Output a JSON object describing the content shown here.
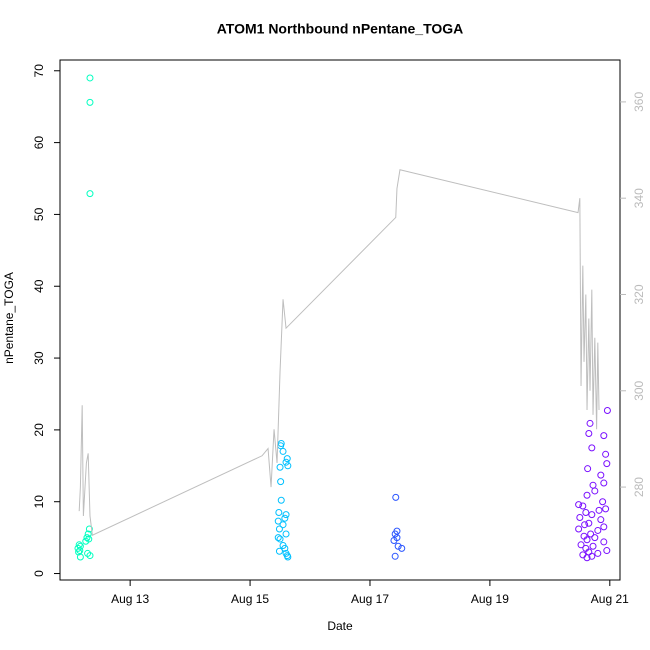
{
  "chart_data": {
    "type": "scatter",
    "title": "ATOM1 Northbound nPentane_TOGA",
    "xlabel": "Date",
    "ylabel": "nPentane_TOGA",
    "xlim": [
      11.83,
      21.17
    ],
    "xticks": [
      {
        "value": 13,
        "label": "Aug 13"
      },
      {
        "value": 15,
        "label": "Aug 15"
      },
      {
        "value": 17,
        "label": "Aug 17"
      },
      {
        "value": 19,
        "label": "Aug 19"
      },
      {
        "value": 21,
        "label": "Aug 21"
      }
    ],
    "ylim": [
      -0.9,
      71.5
    ],
    "yticks": [
      0,
      10,
      20,
      30,
      40,
      50,
      60,
      70
    ],
    "y2lim": [
      260.7,
      368.7
    ],
    "y2ticks": [
      280,
      300,
      320,
      340,
      360
    ],
    "series": [
      {
        "color": "#00ffc0",
        "x": [
          12.33,
          12.33,
          12.33,
          12.32,
          12.3,
          12.28,
          12.31,
          12.26,
          12.15,
          12.17,
          12.13,
          12.16,
          12.14,
          12.29,
          12.33,
          12.17
        ],
        "values": [
          69,
          65.6,
          52.9,
          6.2,
          5.5,
          5,
          4.8,
          4.5,
          4,
          3.8,
          3.5,
          3.2,
          3,
          2.8,
          2.5,
          2.3
        ]
      },
      {
        "color": "#00c0ff",
        "x": [
          15.52,
          15.51,
          15.55,
          15.62,
          15.6,
          15.63,
          15.5,
          15.51,
          15.52,
          15.48,
          15.6,
          15.58,
          15.47,
          15.55,
          15.49,
          15.6,
          15.47,
          15.5,
          15.55,
          15.58,
          15.49,
          15.6,
          15.62,
          15.63
        ],
        "values": [
          18.1,
          17.8,
          17,
          16,
          15.5,
          15,
          14.8,
          12.8,
          10.2,
          8.5,
          8.2,
          7.7,
          7.3,
          6.8,
          6.2,
          5.5,
          5,
          4.8,
          3.9,
          3.5,
          3.1,
          2.8,
          2.5,
          2.3
        ]
      },
      {
        "color": "#2a55ff",
        "x": [
          17.43,
          17.45,
          17.42,
          17.45,
          17.4,
          17.47,
          17.53,
          17.42
        ],
        "values": [
          10.6,
          5.9,
          5.5,
          5,
          4.6,
          3.8,
          3.5,
          2.4
        ]
      },
      {
        "color": "#7a10ff",
        "x": [
          20.96,
          20.67,
          20.65,
          20.9,
          20.7,
          20.93,
          20.95,
          20.63,
          20.85,
          20.9,
          20.72,
          20.75,
          20.62,
          20.88,
          20.48,
          20.55,
          20.93,
          20.82,
          20.6,
          20.7,
          20.5,
          20.85,
          20.65,
          20.58,
          20.9,
          20.48,
          20.8,
          20.68,
          20.57,
          20.75,
          20.62,
          20.9,
          20.52,
          20.72,
          20.6,
          20.95,
          20.65,
          20.8,
          20.55,
          20.7,
          20.62
        ],
        "values": [
          22.7,
          20.9,
          19.5,
          19.2,
          17.5,
          16.6,
          15.3,
          14.6,
          13.7,
          12.6,
          12.3,
          11.5,
          10.9,
          10,
          9.6,
          9.4,
          9,
          8.8,
          8.5,
          8.2,
          7.8,
          7.5,
          7,
          6.8,
          6.5,
          6.2,
          6,
          5.5,
          5.2,
          5,
          4.7,
          4.4,
          4,
          3.8,
          3.5,
          3.2,
          3,
          2.8,
          2.6,
          2.4,
          2.2
        ]
      },
      {
        "type": "line",
        "axis": "y2",
        "color": "#bebebe",
        "x": [
          12.15,
          12.17,
          12.2,
          12.22,
          12.27,
          12.3,
          12.33,
          12.37,
          15.2,
          15.3,
          15.35,
          15.4,
          15.45,
          15.5,
          15.55,
          15.6,
          17.43,
          17.45,
          17.5,
          20.47,
          20.5,
          20.52,
          20.55,
          20.57,
          20.6,
          20.62,
          20.65,
          20.67,
          20.7,
          20.72,
          20.75,
          20.78,
          20.8,
          20.82
        ],
        "values": [
          275,
          280,
          297,
          274,
          285,
          287,
          274,
          270,
          286.5,
          288,
          280,
          292,
          285,
          304,
          319,
          313,
          336,
          342,
          345.9,
          337,
          340,
          301,
          326,
          306,
          320,
          296,
          315,
          300,
          321,
          295,
          311,
          292,
          310,
          296
        ]
      }
    ]
  }
}
